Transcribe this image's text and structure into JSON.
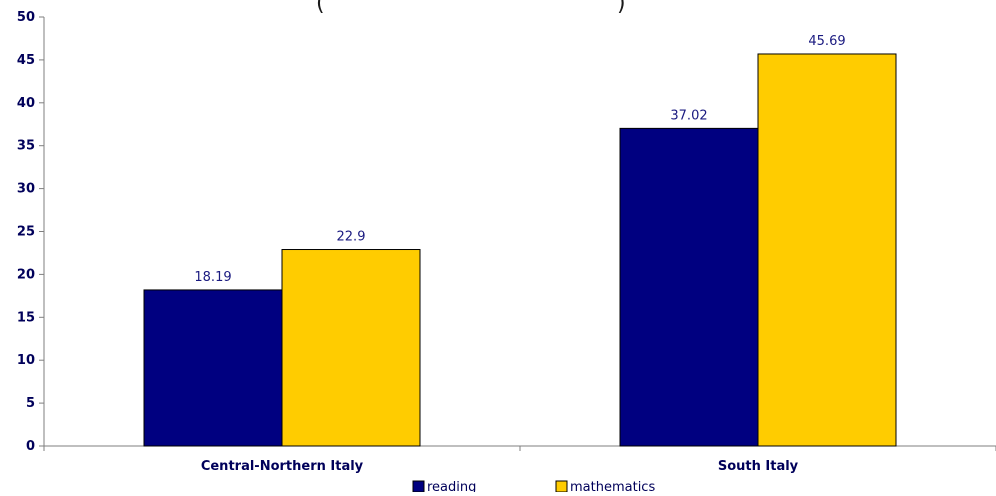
{
  "chart_data": {
    "type": "bar",
    "title_fragment_left": "(",
    "title_fragment_right": ")",
    "categories": [
      "Central-Northern Italy",
      "South Italy"
    ],
    "series": [
      {
        "name": "reading",
        "values": [
          18.19,
          37.02
        ],
        "color": "#000080"
      },
      {
        "name": "mathematics",
        "values": [
          22.9,
          45.69
        ],
        "color": "#FFCC00"
      }
    ],
    "data_labels": [
      [
        "18.19",
        "37.02"
      ],
      [
        "22.9",
        "45.69"
      ]
    ],
    "yticks": [
      "0",
      "5",
      "10",
      "15",
      "20",
      "25",
      "30",
      "35",
      "40",
      "45",
      "50"
    ],
    "ylim": [
      0,
      50
    ],
    "grid": false,
    "legend_position": "bottom"
  }
}
